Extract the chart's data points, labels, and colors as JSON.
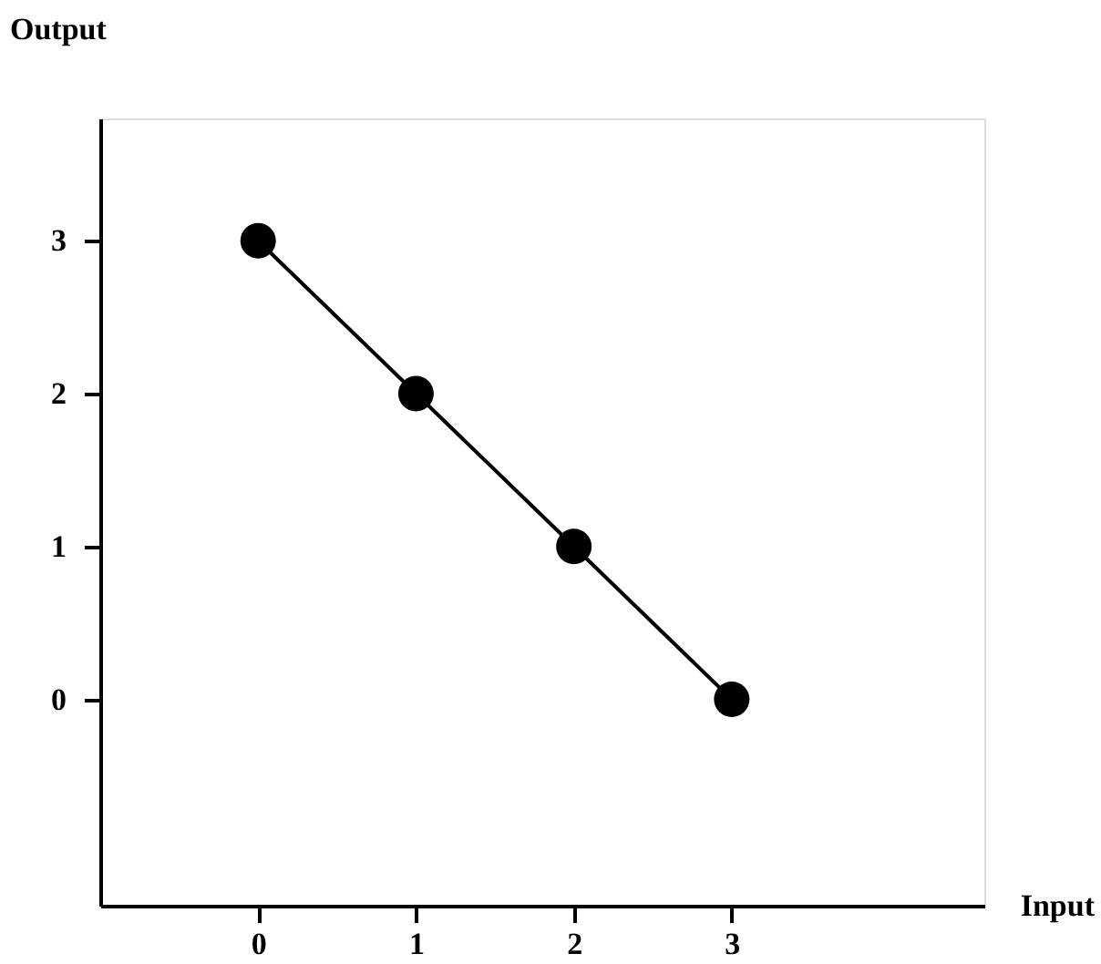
{
  "chart_data": {
    "type": "line",
    "xlabel": "Input",
    "ylabel": "Output",
    "x": [
      0,
      1,
      2,
      3
    ],
    "values": [
      3,
      2,
      1,
      0
    ],
    "color": "#000000",
    "marker": "circle",
    "line_style": "solid",
    "xlim": [
      -1,
      4.6
    ],
    "ylim": [
      -1.35,
      3.8
    ],
    "xticks": [
      0,
      1,
      2,
      3
    ],
    "yticks": [
      0,
      1,
      2,
      3
    ],
    "grid": false
  }
}
